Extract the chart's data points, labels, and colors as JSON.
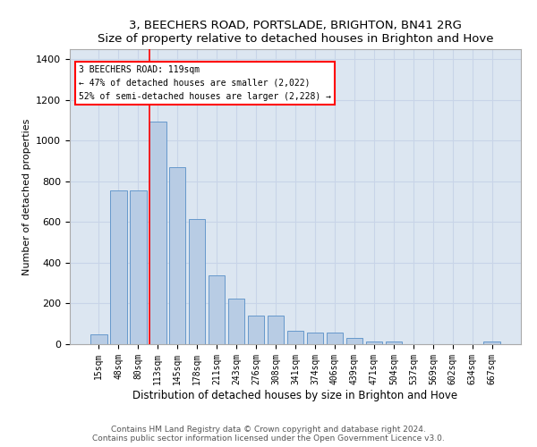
{
  "title": "3, BEECHERS ROAD, PORTSLADE, BRIGHTON, BN41 2RG",
  "subtitle": "Size of property relative to detached houses in Brighton and Hove",
  "xlabel": "Distribution of detached houses by size in Brighton and Hove",
  "ylabel": "Number of detached properties",
  "categories": [
    "15sqm",
    "48sqm",
    "80sqm",
    "113sqm",
    "145sqm",
    "178sqm",
    "211sqm",
    "243sqm",
    "276sqm",
    "308sqm",
    "341sqm",
    "374sqm",
    "406sqm",
    "439sqm",
    "471sqm",
    "504sqm",
    "537sqm",
    "569sqm",
    "602sqm",
    "634sqm",
    "667sqm"
  ],
  "values": [
    50,
    755,
    755,
    1095,
    870,
    615,
    340,
    225,
    140,
    140,
    65,
    55,
    55,
    30,
    15,
    15,
    0,
    0,
    0,
    0,
    15
  ],
  "bar_color": "#b8cce4",
  "bar_edge_color": "#6699cc",
  "annotation_text": "3 BEECHERS ROAD: 119sqm\n← 47% of detached houses are smaller (2,022)\n52% of semi-detached houses are larger (2,228) →",
  "vline_color": "red",
  "ylim": [
    0,
    1450
  ],
  "yticks": [
    0,
    200,
    400,
    600,
    800,
    1000,
    1200,
    1400
  ],
  "grid_color": "#c8d4e8",
  "bg_color": "#dce6f1",
  "footer1": "Contains HM Land Registry data © Crown copyright and database right 2024.",
  "footer2": "Contains public sector information licensed under the Open Government Licence v3.0."
}
